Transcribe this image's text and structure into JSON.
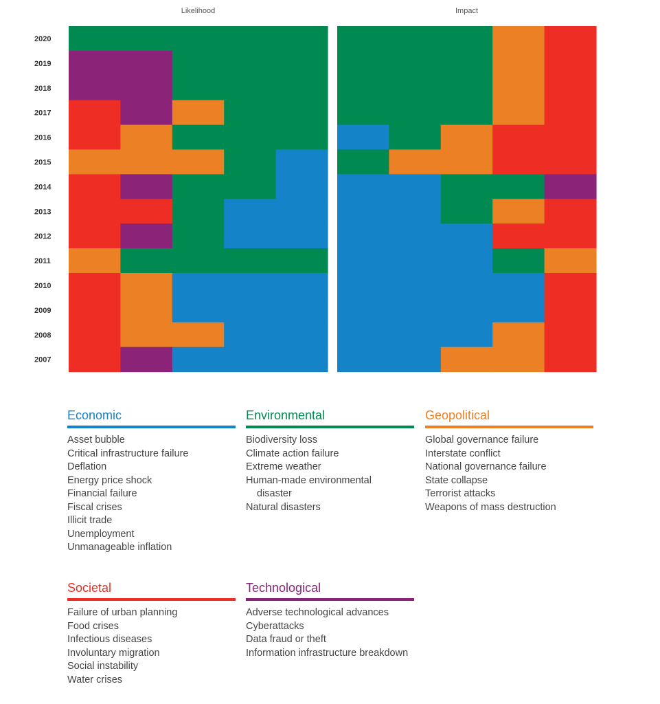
{
  "chart_data": {
    "type": "heatmap",
    "panels": [
      {
        "title": "Likelihood",
        "rows": {
          "2020": [
            "Environmental",
            "Environmental",
            "Environmental",
            "Environmental",
            "Environmental"
          ],
          "2019": [
            "Technological",
            "Technological",
            "Environmental",
            "Environmental",
            "Environmental"
          ],
          "2018": [
            "Technological",
            "Technological",
            "Environmental",
            "Environmental",
            "Environmental"
          ],
          "2017": [
            "Societal",
            "Technological",
            "Geopolitical",
            "Environmental",
            "Environmental"
          ],
          "2016": [
            "Societal",
            "Geopolitical",
            "Environmental",
            "Environmental",
            "Environmental"
          ],
          "2015": [
            "Geopolitical",
            "Geopolitical",
            "Geopolitical",
            "Environmental",
            "Economic"
          ],
          "2014": [
            "Societal",
            "Technological",
            "Environmental",
            "Environmental",
            "Economic"
          ],
          "2013": [
            "Societal",
            "Societal",
            "Environmental",
            "Economic",
            "Economic"
          ],
          "2012": [
            "Societal",
            "Technological",
            "Environmental",
            "Economic",
            "Economic"
          ],
          "2011": [
            "Geopolitical",
            "Environmental",
            "Environmental",
            "Environmental",
            "Environmental"
          ],
          "2010": [
            "Societal",
            "Geopolitical",
            "Economic",
            "Economic",
            "Economic"
          ],
          "2009": [
            "Societal",
            "Geopolitical",
            "Economic",
            "Economic",
            "Economic"
          ],
          "2008": [
            "Societal",
            "Geopolitical",
            "Geopolitical",
            "Economic",
            "Economic"
          ],
          "2007": [
            "Societal",
            "Technological",
            "Economic",
            "Economic",
            "Economic"
          ]
        }
      },
      {
        "title": "Impact",
        "rows": {
          "2020": [
            "Environmental",
            "Environmental",
            "Environmental",
            "Geopolitical",
            "Societal"
          ],
          "2019": [
            "Environmental",
            "Environmental",
            "Environmental",
            "Geopolitical",
            "Societal"
          ],
          "2018": [
            "Environmental",
            "Environmental",
            "Environmental",
            "Geopolitical",
            "Societal"
          ],
          "2017": [
            "Environmental",
            "Environmental",
            "Environmental",
            "Geopolitical",
            "Societal"
          ],
          "2016": [
            "Economic",
            "Environmental",
            "Geopolitical",
            "Societal",
            "Societal"
          ],
          "2015": [
            "Environmental",
            "Geopolitical",
            "Geopolitical",
            "Societal",
            "Societal"
          ],
          "2014": [
            "Economic",
            "Economic",
            "Environmental",
            "Environmental",
            "Technological"
          ],
          "2013": [
            "Economic",
            "Economic",
            "Environmental",
            "Geopolitical",
            "Societal"
          ],
          "2012": [
            "Economic",
            "Economic",
            "Economic",
            "Societal",
            "Societal"
          ],
          "2011": [
            "Economic",
            "Economic",
            "Economic",
            "Environmental",
            "Geopolitical"
          ],
          "2010": [
            "Economic",
            "Economic",
            "Economic",
            "Economic",
            "Societal"
          ],
          "2009": [
            "Economic",
            "Economic",
            "Economic",
            "Economic",
            "Societal"
          ],
          "2008": [
            "Economic",
            "Economic",
            "Economic",
            "Geopolitical",
            "Societal"
          ],
          "2007": [
            "Economic",
            "Economic",
            "Geopolitical",
            "Geopolitical",
            "Societal"
          ]
        }
      }
    ],
    "years": [
      "2020",
      "2019",
      "2018",
      "2017",
      "2016",
      "2015",
      "2014",
      "2013",
      "2012",
      "2011",
      "2010",
      "2009",
      "2008",
      "2007"
    ],
    "colors": {
      "Economic": "#1483C8",
      "Environmental": "#008A52",
      "Geopolitical": "#EB8024",
      "Societal": "#EE2E24",
      "Technological": "#8B2479"
    }
  },
  "legend": [
    {
      "name": "Economic",
      "color": "#1483C8",
      "items": [
        "Asset bubble",
        "Critical infrastructure failure",
        "Deflation",
        "Energy price shock",
        "Financial failure",
        "Fiscal crises",
        "Illicit trade",
        "Unemployment",
        "Unmanageable inflation"
      ]
    },
    {
      "name": "Environmental",
      "color": "#008A52",
      "items": [
        "Biodiversity loss",
        "Climate action failure",
        "Extreme weather",
        "Human-made environmental disaster",
        "Natural disasters"
      ]
    },
    {
      "name": "Geopolitical",
      "color": "#EB8024",
      "items": [
        "Global governance failure",
        "Interstate conflict",
        "National governance failure",
        "State collapse",
        "Terrorist attacks",
        "Weapons of mass destruction"
      ]
    },
    {
      "name": "Societal",
      "color": "#EE2E24",
      "items": [
        "Failure of urban planning",
        "Food crises",
        "Infectious diseases",
        "Involuntary migration",
        "Social instability",
        "Water crises"
      ]
    },
    {
      "name": "Technological",
      "color": "#8B2479",
      "items": [
        "Adverse technological advances",
        "Cyberattacks",
        "Data fraud or theft",
        "Information infrastructure breakdown"
      ]
    }
  ]
}
